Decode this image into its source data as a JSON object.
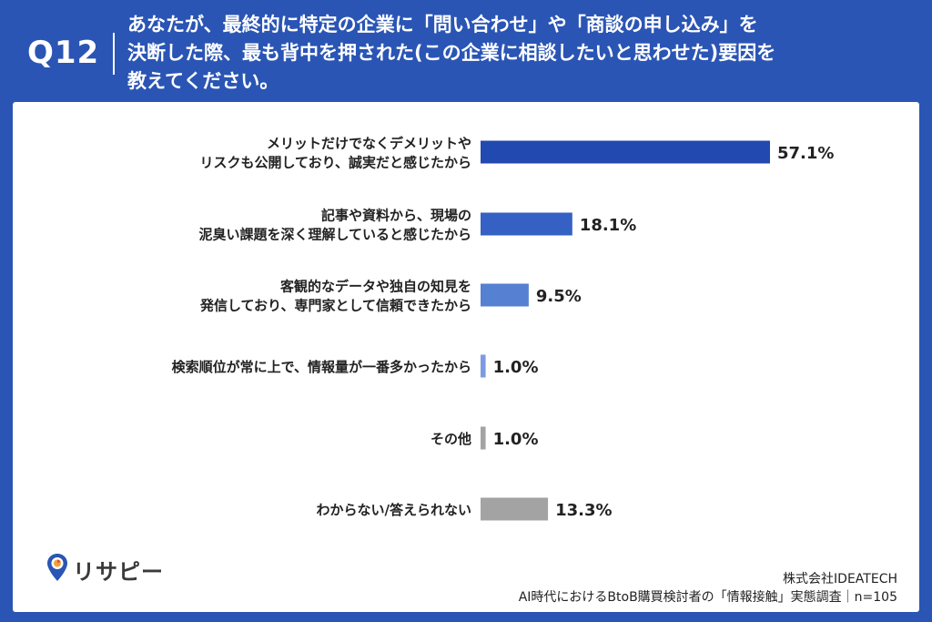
{
  "header": {
    "question_no": "Q12",
    "question_lines": [
      "あなたが、最終的に特定の企業に「問い合わせ」や「商談の申し込み」を",
      "決断した際、最も背中を押された(この企業に相談したいと思わせた)要因を",
      "教えてください。"
    ]
  },
  "chart_data": {
    "type": "bar",
    "orientation": "horizontal",
    "categories": [
      [
        "メリットだけでなくデメリットや",
        "リスクも公開しており、誠実だと感じたから"
      ],
      [
        "記事や資料から、現場の",
        "泥臭い課題を深く理解していると感じたから"
      ],
      [
        "客観的なデータや独自の知見を",
        "発信しており、専門家として信頼できたから"
      ],
      [
        "検索順位が常に上で、情報量が一番多かったから"
      ],
      [
        "その他"
      ],
      [
        "わからない/答えられない"
      ]
    ],
    "values": [
      57.1,
      18.1,
      9.5,
      1.0,
      1.0,
      13.3
    ],
    "value_labels": [
      "57.1%",
      "18.1%",
      "9.5%",
      "1.0%",
      "1.0%",
      "13.3%"
    ],
    "bar_colors": [
      "#2149b0",
      "#3561c4",
      "#5680d2",
      "#7c9be0",
      "#a3a3a3",
      "#a3a3a3"
    ],
    "xlim": [
      0,
      57.1
    ],
    "grid": false
  },
  "logo": {
    "text": "リサピー"
  },
  "footer": {
    "company": "株式会社IDEATECH",
    "survey": "AI時代におけるBtoB購買検討者の「情報接触」実態調査｜n=105"
  },
  "colors": {
    "header_bg": "#2a55b4",
    "panel_bg": "#ffffff",
    "text": "#222222"
  }
}
